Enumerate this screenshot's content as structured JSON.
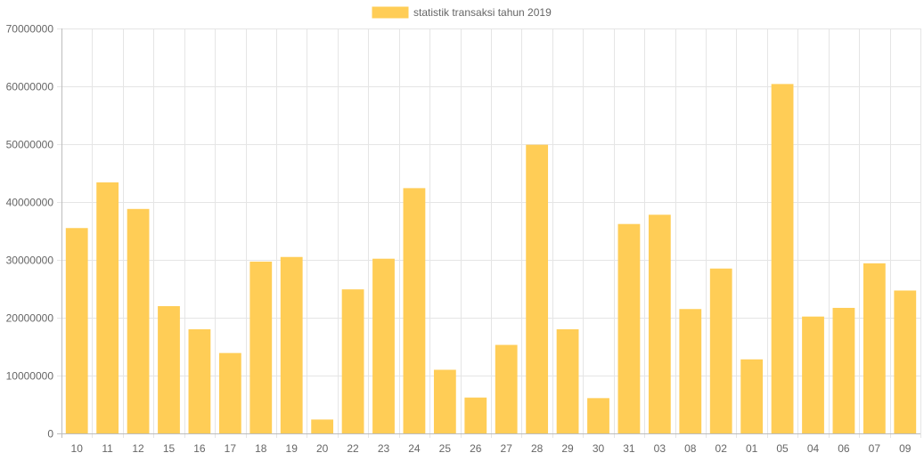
{
  "chart_data": {
    "type": "bar",
    "title": "",
    "xlabel": "",
    "ylabel": "",
    "legend": {
      "position": "top-center"
    },
    "grid": true,
    "ylim": [
      0,
      70000000
    ],
    "yticks": [
      "0",
      "10000000",
      "20000000",
      "30000000",
      "40000000",
      "50000000",
      "60000000",
      "70000000"
    ],
    "categories": [
      "10",
      "11",
      "12",
      "15",
      "16",
      "17",
      "18",
      "19",
      "20",
      "22",
      "23",
      "24",
      "25",
      "26",
      "27",
      "28",
      "29",
      "30",
      "31",
      "03",
      "08",
      "02",
      "01",
      "05",
      "04",
      "06",
      "07",
      "09"
    ],
    "series": [
      {
        "name": "statistik transaksi tahun 2019",
        "color": "#ffcd56",
        "values": [
          35500000,
          43400000,
          38800000,
          22000000,
          18000000,
          13900000,
          29700000,
          30500000,
          2400000,
          24900000,
          30200000,
          42400000,
          11000000,
          6200000,
          15300000,
          49900000,
          18000000,
          6100000,
          36200000,
          37800000,
          21500000,
          28500000,
          12800000,
          60400000,
          20200000,
          21700000,
          29400000,
          24700000
        ]
      }
    ]
  }
}
